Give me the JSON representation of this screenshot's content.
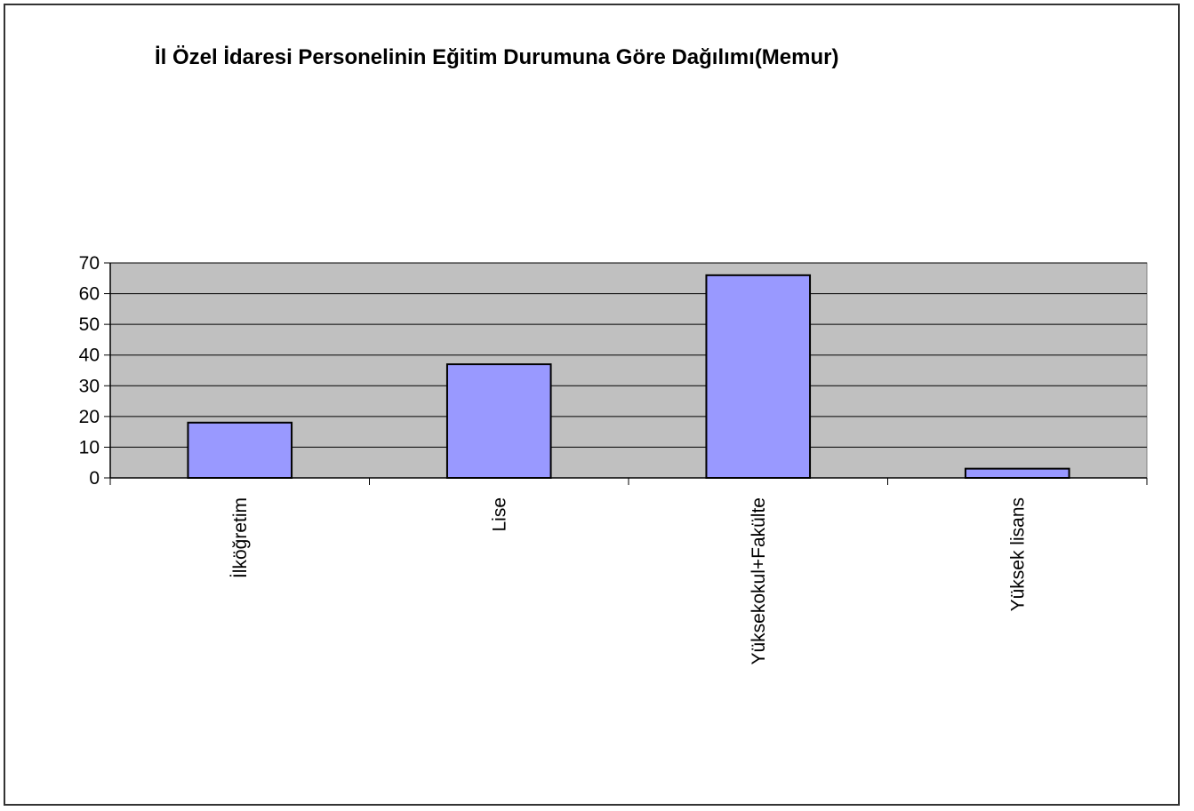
{
  "chart_data": {
    "type": "bar",
    "title": "İl Özel İdaresi Personelinin Eğitim Durumuna Göre Dağılımı(Memur)",
    "xlabel": "",
    "ylabel": "",
    "categories": [
      "İlköğretim",
      "Lise",
      "Yüksekokul+Fakülte",
      "Yüksek lisans"
    ],
    "values": [
      18,
      37,
      66,
      3
    ],
    "ylim": [
      0,
      70
    ],
    "yticks": [
      0,
      10,
      20,
      30,
      40,
      50,
      60,
      70
    ],
    "grid": true,
    "legend": "none",
    "colors": {
      "bar_fill": "#9999ff",
      "bar_stroke": "#000000",
      "plot_background": "#c0c0c0",
      "gridline": "#000000"
    }
  }
}
